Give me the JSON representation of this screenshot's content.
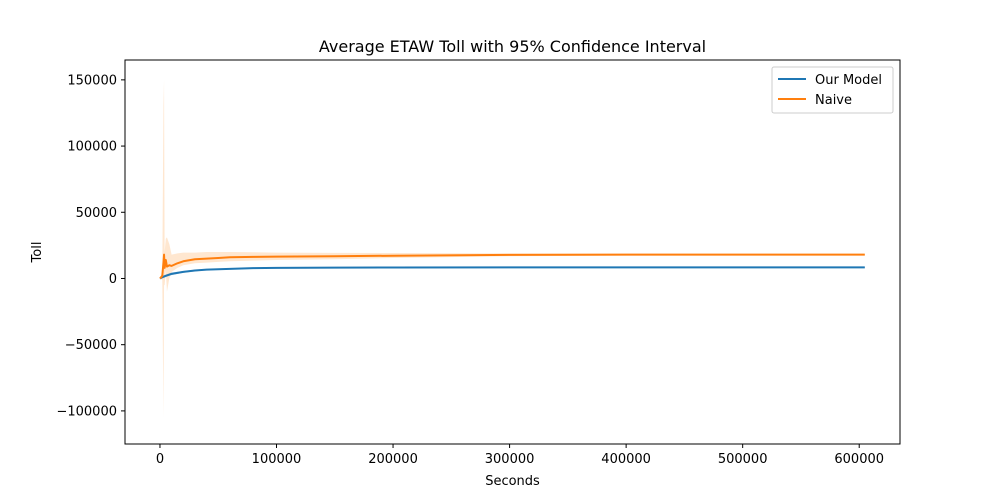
{
  "chart_data": {
    "type": "line",
    "title": "Average ETAW Toll with 95% Confidence Interval",
    "xlabel": "Seconds",
    "ylabel": "Toll",
    "xlim": [
      -30000,
      635000
    ],
    "ylim": [
      -125000,
      165000
    ],
    "x_ticks": [
      0,
      100000,
      200000,
      300000,
      400000,
      500000,
      600000
    ],
    "x_tick_labels": [
      "0",
      "100000",
      "200000",
      "300000",
      "400000",
      "500000",
      "600000"
    ],
    "y_ticks": [
      -100000,
      -50000,
      0,
      50000,
      100000,
      150000
    ],
    "y_tick_labels": [
      "−100000",
      "−50000",
      "0",
      "50000",
      "100000",
      "150000"
    ],
    "legend_position": "top-right",
    "grid": false,
    "series": [
      {
        "name": "Our Model",
        "color": "#1f77b4",
        "x": [
          0,
          2000,
          5000,
          10000,
          20000,
          30000,
          40000,
          60000,
          80000,
          100000,
          150000,
          200000,
          300000,
          400000,
          500000,
          604800
        ],
        "y": [
          0,
          1000,
          2000,
          3500,
          5000,
          6000,
          6700,
          7300,
          7800,
          8000,
          8200,
          8300,
          8400,
          8400,
          8400,
          8400
        ],
        "lower": [
          0,
          0,
          1000,
          2500,
          4300,
          5400,
          6200,
          6900,
          7400,
          7700,
          7900,
          8000,
          8100,
          8100,
          8100,
          8100
        ],
        "upper": [
          0,
          2000,
          3000,
          4500,
          5700,
          6600,
          7200,
          7700,
          8200,
          8300,
          8500,
          8600,
          8700,
          8700,
          8700,
          8700
        ]
      },
      {
        "name": "Naive",
        "color": "#ff7f0e",
        "band_color": "#ffbb78",
        "x": [
          0,
          2000,
          3000,
          3500,
          4000,
          5000,
          6000,
          8000,
          10000,
          15000,
          20000,
          30000,
          40000,
          50000,
          60000,
          80000,
          100000,
          150000,
          200000,
          300000,
          400000,
          500000,
          604800
        ],
        "y": [
          0,
          2000,
          12000,
          18000,
          8000,
          14000,
          9000,
          10000,
          9500,
          11500,
          13000,
          14500,
          15000,
          15500,
          16000,
          16300,
          16500,
          16800,
          17200,
          17800,
          18000,
          18000,
          18000
        ],
        "lower": [
          0,
          -1000,
          -105000,
          -5000,
          -5000,
          6000,
          -10000,
          0,
          5000,
          8000,
          10000,
          11500,
          12000,
          12500,
          13000,
          13500,
          14000,
          14500,
          15500,
          16800,
          17300,
          17400,
          17500
        ],
        "upper": [
          0,
          5000,
          130000,
          150000,
          20000,
          30000,
          31000,
          26000,
          18000,
          19000,
          19500,
          19500,
          20000,
          20000,
          20000,
          19800,
          19500,
          19300,
          19200,
          19000,
          18800,
          18700,
          18600
        ]
      }
    ]
  }
}
